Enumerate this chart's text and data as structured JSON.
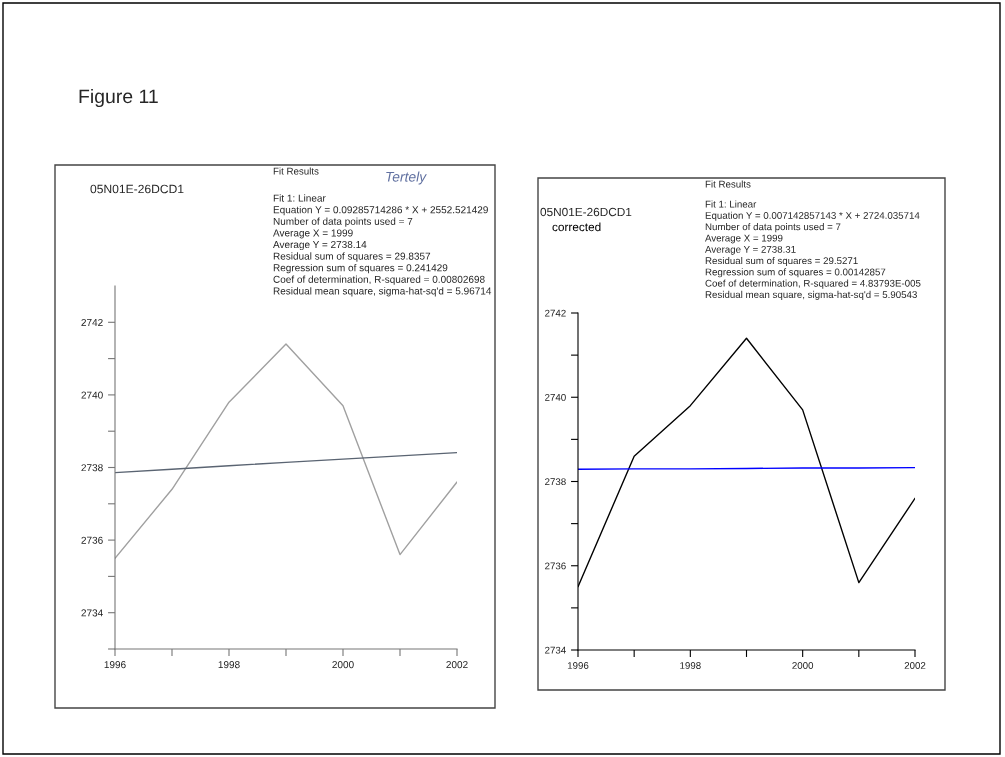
{
  "chart_data": [
    {
      "type": "line",
      "title": "05N01E-26DCD1",
      "subtitle": "Tertely",
      "annotations": [
        "Figure 11",
        "Fit Results",
        "Fit 1: Linear",
        "Equation Y = 0.09285714286 * X + 2552.521429",
        "Number of data points used = 7",
        "Average X = 1999",
        "Average Y = 2738.14",
        "Residual sum of squares = 29.8357",
        "Regression sum of squares = 0.241429",
        "Coef of determination, R-squared = 0.00802698",
        "Residual mean square, sigma-hat-sq'd = 5.96714"
      ],
      "x": [
        1996,
        1997,
        1998,
        1999,
        2000,
        2001,
        2002
      ],
      "series": [
        {
          "color": "#a0a0a0",
          "values": [
            2735.5,
            2737.4,
            2739.8,
            2741.4,
            2739.7,
            2735.6,
            2737.6
          ]
        },
        {
          "type": "line",
          "color": "#5a6472",
          "values": [
            2737.86,
            2737.95,
            2738.05,
            2738.14,
            2738.23,
            2738.32,
            2738.41
          ]
        }
      ],
      "xlim": [
        1996,
        2002
      ],
      "xticks": [
        1996,
        {
          "value": 1997,
          "label": null
        },
        1998,
        {
          "value": 1999,
          "label": null
        },
        2000,
        {
          "value": 2001,
          "label": null
        },
        2002
      ],
      "ylim": [
        2733,
        2743
      ],
      "yticks": [
        {
          "value": 2733,
          "label": null
        },
        2734,
        {
          "value": 2735,
          "label": null
        },
        2736,
        {
          "value": 2737,
          "label": null
        },
        2738,
        {
          "value": 2739,
          "label": null
        },
        2740,
        {
          "value": 2741,
          "label": null
        },
        2742
      ],
      "grid": false,
      "marker": "none",
      "line_style": "solid"
    },
    {
      "type": "line",
      "title": "05N01E-26DCD1",
      "subtitle": "corrected",
      "annotations": [
        "Fit Results",
        "Fit 1: Linear",
        "Equation Y = 0.007142857143 * X + 2724.035714",
        "Number of data points used = 7",
        "Average X = 1999",
        "Average Y = 2738.31",
        "Residual sum of squares = 29.5271",
        "Regression sum of squares = 0.00142857",
        "Coef of determination, R-squared = 4.83793E-005",
        "Residual mean square, sigma-hat-sq'd = 5.90543"
      ],
      "x": [
        1996,
        1997,
        1998,
        1999,
        2000,
        2001,
        2002
      ],
      "series": [
        {
          "color": "#000000",
          "values": [
            2735.5,
            2738.6,
            2739.8,
            2741.4,
            2739.7,
            2735.6,
            2737.6
          ]
        },
        {
          "type": "line",
          "color": "#0000ff",
          "values": [
            2738.29,
            2738.3,
            2738.3,
            2738.31,
            2738.32,
            2738.32,
            2738.33
          ]
        }
      ],
      "xlim": [
        1996,
        2002
      ],
      "xticks": [
        1996,
        {
          "value": 1997,
          "label": null
        },
        1998,
        {
          "value": 1999,
          "label": null
        },
        2000,
        {
          "value": 2001,
          "label": null
        },
        2002
      ],
      "ylim": [
        2734,
        2742
      ],
      "yticks": [
        2734,
        {
          "value": 2735,
          "label": null
        },
        2736,
        {
          "value": 2737,
          "label": null
        },
        2738,
        {
          "value": 2739,
          "label": null
        },
        2740,
        {
          "value": 2741,
          "label": null
        },
        2742
      ],
      "grid": false,
      "marker": "none",
      "line_style": "solid"
    }
  ]
}
